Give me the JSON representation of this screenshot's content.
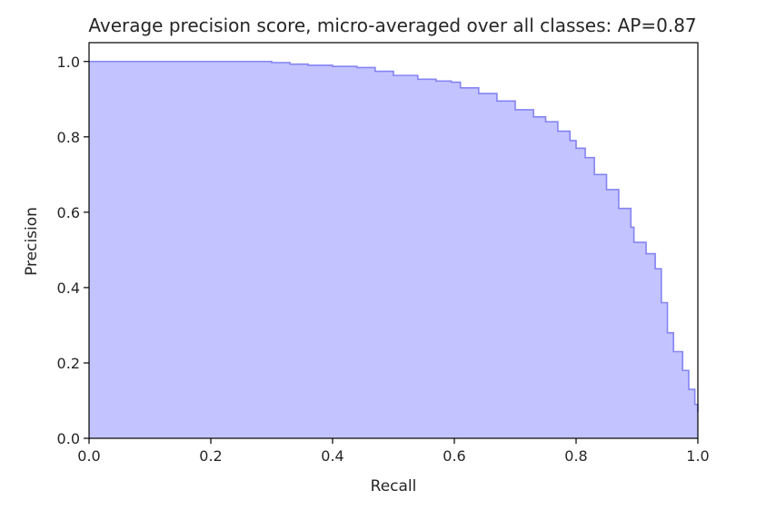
{
  "chart_data": {
    "type": "area",
    "title": "Average precision score, micro-averaged over all classes: AP=0.87",
    "xlabel": "Recall",
    "ylabel": "Precision",
    "xlim": [
      0.0,
      1.0
    ],
    "ylim": [
      0.0,
      1.05
    ],
    "xticks": [
      "0.0",
      "0.2",
      "0.4",
      "0.6",
      "0.8",
      "1.0"
    ],
    "yticks": [
      "0.0",
      "0.2",
      "0.4",
      "0.6",
      "0.8",
      "1.0"
    ],
    "grid": false,
    "legend": "none",
    "fill_color": "#c3c3ff",
    "line_color": "#8484f5",
    "series": [
      {
        "recall": [
          0.0,
          0.29,
          0.3,
          0.33,
          0.36,
          0.4,
          0.44,
          0.47,
          0.5,
          0.54,
          0.57,
          0.595,
          0.61,
          0.64,
          0.67,
          0.7,
          0.73,
          0.75,
          0.77,
          0.79,
          0.8,
          0.815,
          0.83,
          0.85,
          0.87,
          0.89,
          0.895,
          0.915,
          0.93,
          0.94,
          0.95,
          0.96,
          0.975,
          0.985,
          0.995,
          1.0
        ],
        "precision": [
          1.0,
          1.0,
          0.997,
          0.993,
          0.99,
          0.987,
          0.984,
          0.974,
          0.963,
          0.953,
          0.948,
          0.945,
          0.93,
          0.915,
          0.895,
          0.872,
          0.853,
          0.84,
          0.815,
          0.79,
          0.77,
          0.745,
          0.7,
          0.66,
          0.61,
          0.56,
          0.52,
          0.49,
          0.45,
          0.36,
          0.28,
          0.23,
          0.18,
          0.13,
          0.09,
          0.07
        ]
      }
    ]
  }
}
